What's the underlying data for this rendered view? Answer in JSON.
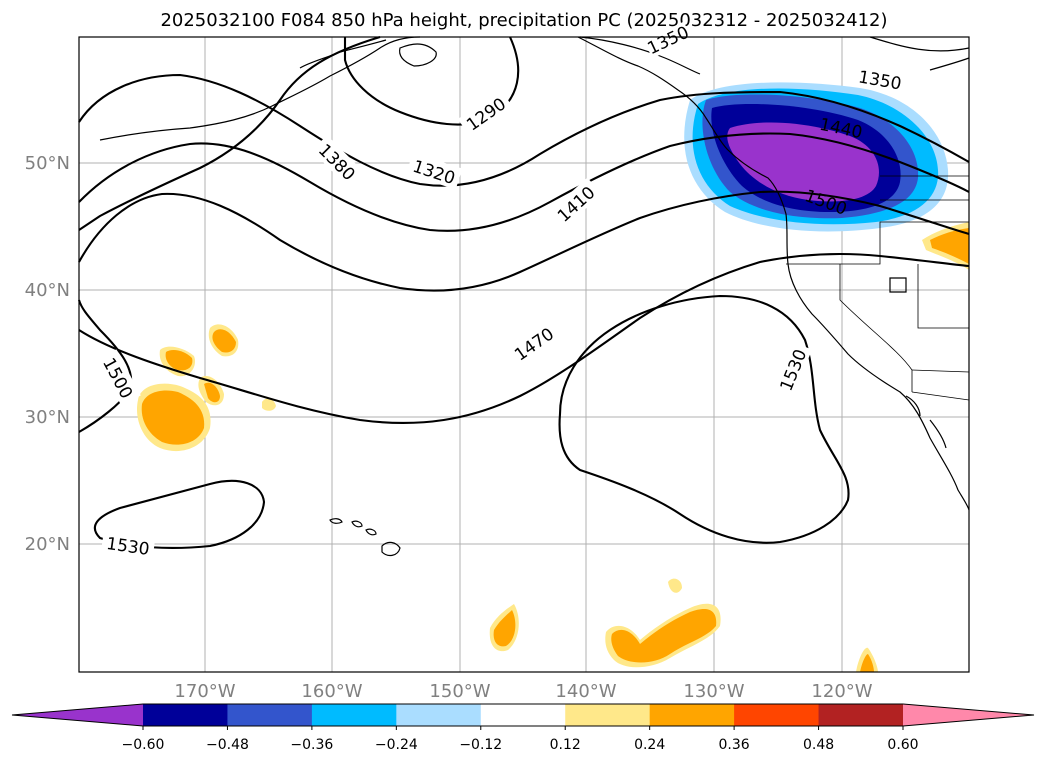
{
  "title": "2025032100 F084 850 hPa height, precipitation PC (2025032312 - 2025032412)",
  "latitude_labels": [
    "50°N",
    "40°N",
    "30°N",
    "20°N"
  ],
  "longitude_labels": [
    "170°W",
    "160°W",
    "150°W",
    "140°W",
    "130°W",
    "120°W"
  ],
  "contour_labels": [
    "1290",
    "1320",
    "1350",
    "1350",
    "1380",
    "1410",
    "1440",
    "1470",
    "1500",
    "1500",
    "1530",
    "1530"
  ],
  "colorbar": {
    "ticks": [
      "−0.60",
      "−0.48",
      "−0.36",
      "−0.24",
      "−0.12",
      "0.12",
      "0.24",
      "0.36",
      "0.48",
      "0.60"
    ],
    "colors": [
      "#9933cc",
      "#000099",
      "#3355cc",
      "#00bbff",
      "#aaddff",
      "#ffffff",
      "#ffe88a",
      "#ffa500",
      "#ff4500",
      "#b22222",
      "#ff88aa"
    ]
  },
  "precip_colors": {
    "neg_light": "#aaddff",
    "neg_cyan": "#00bbff",
    "neg_blue": "#3355cc",
    "neg_navy": "#000099",
    "neg_purple": "#9933cc",
    "pos_yellow": "#ffe88a",
    "pos_orange": "#ffa500"
  }
}
